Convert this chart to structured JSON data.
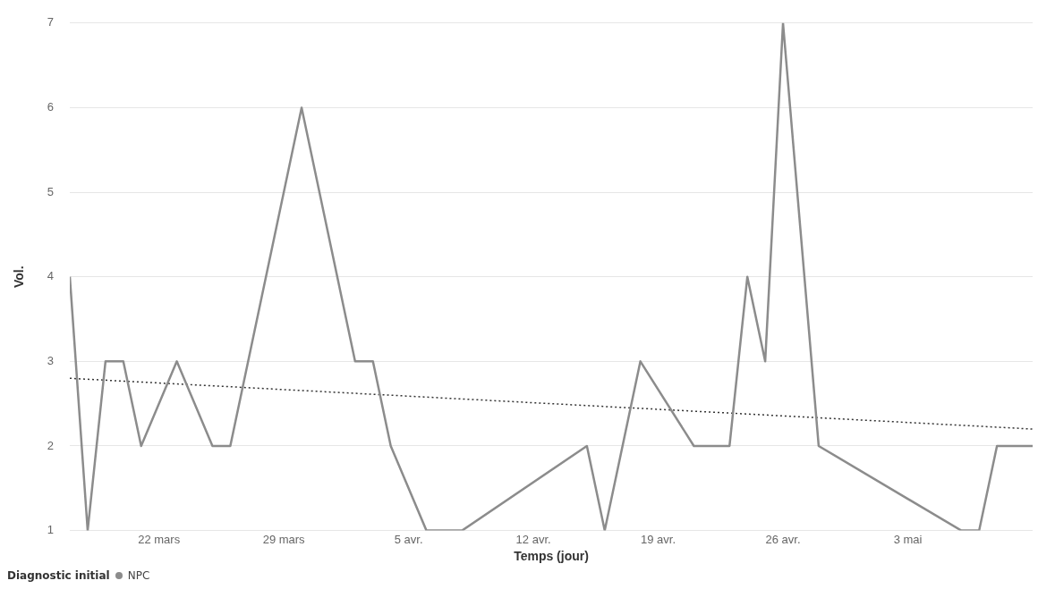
{
  "chart_data": {
    "type": "line",
    "xlabel": "Temps (jour)",
    "ylabel": "Vol.",
    "legend_title": "Diagnostic initial",
    "legend": "bottom left",
    "grid": "y",
    "marker": "none",
    "xlim": [
      "--03-17",
      "--05-10"
    ],
    "xticks": [
      {
        "value": "--03-22",
        "label": "22 mars"
      },
      {
        "value": "--03-29",
        "label": "29 mars"
      },
      {
        "value": "--04-05",
        "label": "5 avr."
      },
      {
        "value": "--04-12",
        "label": "12 avr."
      },
      {
        "value": "--04-19",
        "label": "19 avr."
      },
      {
        "value": "--04-26",
        "label": "26 avr."
      },
      {
        "value": "--05-03",
        "label": "3 mai"
      }
    ],
    "ylim": [
      1,
      7
    ],
    "yticks": [
      1,
      2,
      3,
      4,
      5,
      6,
      7
    ],
    "series": [
      {
        "name": "NPC",
        "color": "#8c8c8c",
        "line_style": "solid",
        "x": [
          "--03-17",
          "--03-18",
          "--03-19",
          "--03-20",
          "--03-21",
          "--03-23",
          "--03-25",
          "--03-26",
          "--03-30",
          "--04-02",
          "--04-03",
          "--04-04",
          "--04-06",
          "--04-08",
          "--04-15",
          "--04-16",
          "--04-18",
          "--04-21",
          "--04-23",
          "--04-24",
          "--04-25",
          "--04-26",
          "--04-28",
          "--05-06",
          "--05-07",
          "--05-08",
          "--05-10"
        ],
        "values": [
          4,
          1,
          3,
          3,
          2,
          3,
          2,
          2,
          6,
          3,
          3,
          2,
          1,
          1,
          2,
          1,
          3,
          2,
          2,
          4,
          3,
          7,
          2,
          1,
          1,
          2,
          2
        ]
      },
      {
        "type": "line",
        "color": "#333333",
        "line_style": "dotted",
        "x": [
          "--03-17",
          "--05-10"
        ],
        "values": [
          2.8,
          2.2
        ]
      }
    ]
  }
}
